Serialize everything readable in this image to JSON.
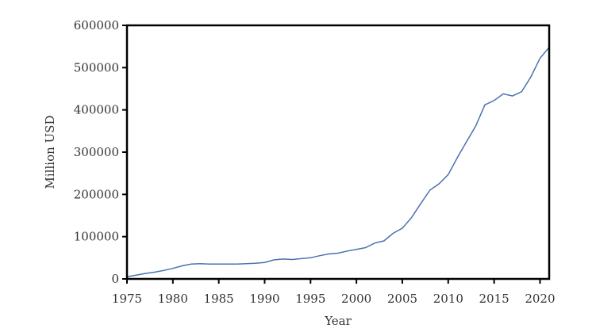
{
  "chart_data": {
    "type": "line",
    "title": "",
    "xlabel": "Year",
    "ylabel": "Million USD",
    "xlim": [
      1975,
      2021
    ],
    "ylim": [
      0,
      600000
    ],
    "x_ticks": [
      1975,
      1980,
      1985,
      1990,
      1995,
      2000,
      2005,
      2010,
      2015,
      2020
    ],
    "y_ticks": [
      0,
      100000,
      200000,
      300000,
      400000,
      500000,
      600000
    ],
    "grid": false,
    "legend": "none",
    "line_color": "#4a72b0",
    "series": [
      {
        "x": [
          1975,
          1976,
          1977,
          1978,
          1979,
          1980,
          1981,
          1982,
          1983,
          1984,
          1985,
          1986,
          1987,
          1988,
          1989,
          1990,
          1991,
          1992,
          1993,
          1994,
          1995,
          1996,
          1997,
          1998,
          1999,
          2000,
          2001,
          2002,
          2003,
          2004,
          2005,
          2006,
          2007,
          2008,
          2009,
          2010,
          2011,
          2012,
          2013,
          2014,
          2015,
          2016,
          2017,
          2018,
          2019,
          2020,
          2021
        ],
        "values": [
          5000,
          9000,
          13000,
          16000,
          20000,
          25000,
          31000,
          35000,
          36000,
          35000,
          35000,
          35000,
          35000,
          36000,
          37000,
          39000,
          45000,
          47000,
          46000,
          48000,
          50000,
          55000,
          59000,
          61000,
          66000,
          70000,
          74000,
          85000,
          90000,
          108000,
          120000,
          145000,
          178000,
          210000,
          225000,
          247000,
          287000,
          325000,
          362000,
          412000,
          422000,
          438000,
          433000,
          443000,
          478000,
          522000,
          548000
        ]
      }
    ]
  }
}
